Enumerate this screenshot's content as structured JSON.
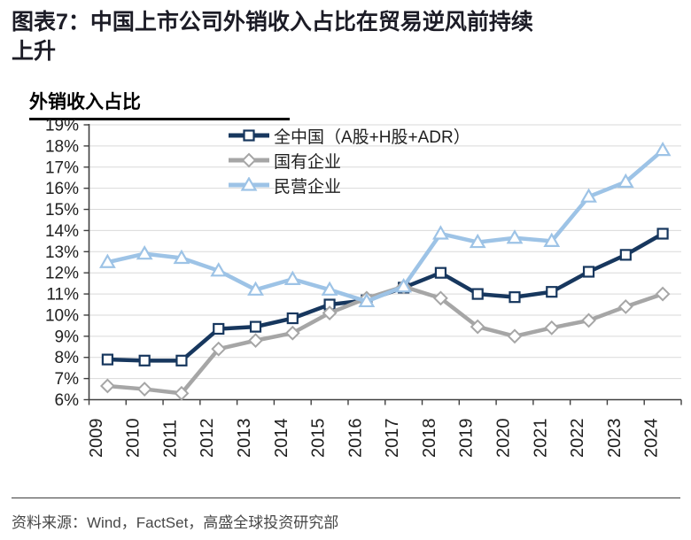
{
  "header": {
    "title_lines": [
      "图表7：中国上市公司外销收入占比在贸易逆风前持续",
      "上升"
    ]
  },
  "chart_data": {
    "type": "line",
    "title": "外销收入占比",
    "categories": [
      "2009",
      "2010",
      "2011",
      "2012",
      "2013",
      "2014",
      "2015",
      "2016",
      "2017",
      "2018",
      "2019",
      "2020",
      "2021",
      "2022",
      "2023",
      "2024"
    ],
    "series": [
      {
        "name": "全中国（A股+H股+ADR）",
        "marker": "square",
        "color": "#17375E",
        "values": [
          7.9,
          7.85,
          7.85,
          9.35,
          9.45,
          9.85,
          10.5,
          10.7,
          11.3,
          12.0,
          11.0,
          10.85,
          11.1,
          12.05,
          12.85,
          13.85
        ]
      },
      {
        "name": "国有企业",
        "marker": "diamond",
        "color": "#A6A6A6",
        "values": [
          6.65,
          6.5,
          6.3,
          8.4,
          8.8,
          9.15,
          10.1,
          10.8,
          11.35,
          10.8,
          9.45,
          9.0,
          9.4,
          9.75,
          10.4,
          11.0
        ]
      },
      {
        "name": "民营企业",
        "marker": "triangle",
        "color": "#9DC3E6",
        "values": [
          12.5,
          12.9,
          12.7,
          12.1,
          11.2,
          11.7,
          11.2,
          10.65,
          11.35,
          13.85,
          13.45,
          13.65,
          13.5,
          15.6,
          16.3,
          17.8
        ]
      }
    ],
    "ylim": [
      6,
      19
    ],
    "y_tick_step": 1,
    "y_ticks": [
      "19%",
      "18%",
      "17%",
      "16%",
      "15%",
      "14%",
      "13%",
      "12%",
      "11%",
      "10%",
      "9%",
      "8%",
      "7%",
      "6%"
    ],
    "grid": "horizontal",
    "legend_position": "top-center-inside"
  },
  "colors": {
    "grid": "#D9D9D9",
    "axis": "#404040",
    "tick_text": "#1f1f1f",
    "marker_fill": "#FFFFFF"
  },
  "footer": {
    "source": "资料来源：Wind，FactSet，高盛全球投资研究部"
  }
}
